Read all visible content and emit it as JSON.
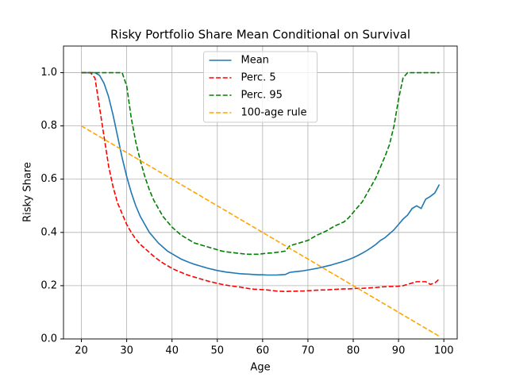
{
  "chart_data": {
    "type": "line",
    "title": "Risky Portfolio Share Mean Conditional on Survival",
    "xlabel": "Age",
    "ylabel": "Risky Share",
    "x": [
      20,
      21,
      22,
      23,
      24,
      25,
      26,
      27,
      28,
      29,
      30,
      31,
      32,
      33,
      34,
      35,
      36,
      37,
      38,
      39,
      40,
      41,
      42,
      43,
      44,
      45,
      46,
      47,
      48,
      49,
      50,
      51,
      52,
      53,
      54,
      55,
      56,
      57,
      58,
      59,
      60,
      61,
      62,
      63,
      64,
      65,
      66,
      67,
      68,
      69,
      70,
      71,
      72,
      73,
      74,
      75,
      76,
      77,
      78,
      79,
      80,
      81,
      82,
      83,
      84,
      85,
      86,
      87,
      88,
      89,
      90,
      91,
      92,
      93,
      94,
      95,
      96,
      97,
      98,
      99
    ],
    "series": [
      {
        "name": "Mean",
        "color": "#1f77b4",
        "linestyle": "solid",
        "values": [
          1.0,
          1.0,
          1.0,
          1.0,
          0.99,
          0.96,
          0.91,
          0.84,
          0.76,
          0.68,
          0.61,
          0.55,
          0.5,
          0.46,
          0.43,
          0.4,
          0.38,
          0.36,
          0.345,
          0.33,
          0.32,
          0.31,
          0.3,
          0.293,
          0.286,
          0.28,
          0.275,
          0.27,
          0.265,
          0.261,
          0.257,
          0.254,
          0.251,
          0.249,
          0.247,
          0.245,
          0.244,
          0.243,
          0.242,
          0.241,
          0.241,
          0.24,
          0.24,
          0.24,
          0.241,
          0.242,
          0.25,
          0.252,
          0.254,
          0.256,
          0.259,
          0.262,
          0.265,
          0.269,
          0.273,
          0.277,
          0.282,
          0.287,
          0.292,
          0.298,
          0.305,
          0.313,
          0.322,
          0.332,
          0.343,
          0.355,
          0.37,
          0.38,
          0.395,
          0.41,
          0.43,
          0.45,
          0.465,
          0.49,
          0.5,
          0.49,
          0.525,
          0.535,
          0.548,
          0.58
        ]
      },
      {
        "name": "Perc. 5",
        "color": "#ff0000",
        "linestyle": "dashed",
        "values": [
          1.0,
          1.0,
          1.0,
          0.98,
          0.87,
          0.76,
          0.65,
          0.57,
          0.51,
          0.47,
          0.43,
          0.4,
          0.375,
          0.355,
          0.34,
          0.325,
          0.31,
          0.297,
          0.285,
          0.275,
          0.265,
          0.257,
          0.25,
          0.243,
          0.237,
          0.232,
          0.227,
          0.222,
          0.217,
          0.213,
          0.209,
          0.205,
          0.202,
          0.199,
          0.197,
          0.195,
          0.192,
          0.189,
          0.187,
          0.186,
          0.185,
          0.184,
          0.182,
          0.18,
          0.179,
          0.178,
          0.179,
          0.179,
          0.18,
          0.18,
          0.181,
          0.182,
          0.183,
          0.184,
          0.184,
          0.185,
          0.186,
          0.187,
          0.188,
          0.188,
          0.189,
          0.19,
          0.19,
          0.191,
          0.192,
          0.193,
          0.195,
          0.196,
          0.197,
          0.197,
          0.198,
          0.2,
          0.205,
          0.21,
          0.215,
          0.215,
          0.215,
          0.205,
          0.21,
          0.225
        ]
      },
      {
        "name": "Perc. 95",
        "color": "#008000",
        "linestyle": "dashed",
        "values": [
          1.0,
          1.0,
          1.0,
          1.0,
          1.0,
          1.0,
          1.0,
          1.0,
          1.0,
          1.0,
          0.95,
          0.83,
          0.74,
          0.67,
          0.61,
          0.56,
          0.52,
          0.49,
          0.46,
          0.44,
          0.42,
          0.405,
          0.39,
          0.38,
          0.37,
          0.36,
          0.355,
          0.35,
          0.345,
          0.34,
          0.335,
          0.33,
          0.327,
          0.325,
          0.323,
          0.321,
          0.319,
          0.318,
          0.318,
          0.318,
          0.32,
          0.322,
          0.323,
          0.325,
          0.327,
          0.33,
          0.35,
          0.355,
          0.36,
          0.365,
          0.37,
          0.38,
          0.39,
          0.397,
          0.405,
          0.415,
          0.425,
          0.432,
          0.44,
          0.455,
          0.475,
          0.495,
          0.515,
          0.545,
          0.575,
          0.605,
          0.645,
          0.685,
          0.73,
          0.8,
          0.9,
          0.98,
          1.0,
          1.0,
          1.0,
          1.0,
          1.0,
          1.0,
          1.0,
          1.0
        ]
      },
      {
        "name": "100-age rule",
        "color": "#ffa500",
        "linestyle": "dashed",
        "values": [
          0.8,
          0.79,
          0.78,
          0.77,
          0.76,
          0.75,
          0.74,
          0.73,
          0.72,
          0.71,
          0.7,
          0.69,
          0.68,
          0.67,
          0.66,
          0.65,
          0.64,
          0.63,
          0.62,
          0.61,
          0.6,
          0.59,
          0.58,
          0.57,
          0.56,
          0.55,
          0.54,
          0.53,
          0.52,
          0.51,
          0.5,
          0.49,
          0.48,
          0.47,
          0.46,
          0.45,
          0.44,
          0.43,
          0.42,
          0.41,
          0.4,
          0.39,
          0.38,
          0.37,
          0.36,
          0.35,
          0.34,
          0.33,
          0.32,
          0.31,
          0.3,
          0.29,
          0.28,
          0.27,
          0.26,
          0.25,
          0.24,
          0.23,
          0.22,
          0.21,
          0.2,
          0.19,
          0.18,
          0.17,
          0.16,
          0.15,
          0.14,
          0.13,
          0.12,
          0.11,
          0.1,
          0.09,
          0.08,
          0.07,
          0.06,
          0.05,
          0.04,
          0.03,
          0.02,
          0.01
        ]
      }
    ],
    "xlim": [
      16.05,
      102.95
    ],
    "xticks": [
      20,
      30,
      40,
      50,
      60,
      70,
      80,
      90,
      100
    ],
    "ylim": [
      0,
      1.1
    ],
    "yticks": [
      {
        "value": 0,
        "label": "0.0"
      },
      0.2,
      0.4,
      0.6,
      0.8,
      {
        "value": 1,
        "label": "1.0"
      }
    ],
    "grid": true,
    "legend": "upper center"
  }
}
